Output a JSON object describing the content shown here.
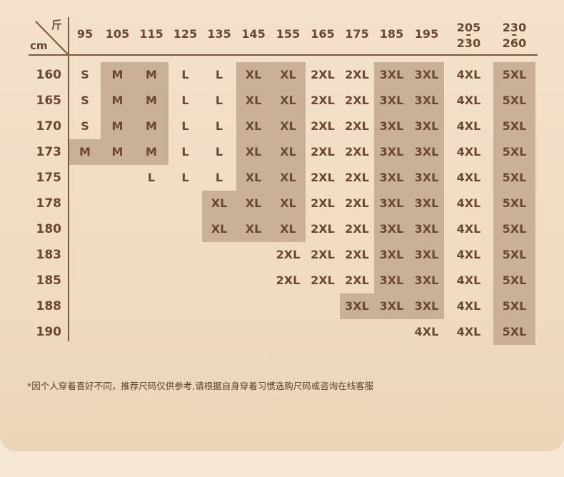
{
  "corner": {
    "weight_unit": "斤",
    "height_unit": "cm"
  },
  "weights": [
    "95",
    "105",
    "115",
    "125",
    "135",
    "145",
    "155",
    "165",
    "175",
    "185",
    "195",
    {
      "from": "205",
      "to": "230"
    },
    {
      "from": "230",
      "to": "260"
    }
  ],
  "shaded_sizes": [
    "M",
    "XL",
    "3XL",
    "5XL"
  ],
  "colors": {
    "text": "#6a4732",
    "shade": "#c9b097",
    "line": "#7a5842",
    "background": "#f2ddc4"
  },
  "rows": [
    {
      "height": "160",
      "sizes": [
        "S",
        "M",
        "M",
        "L",
        "L",
        "XL",
        "XL",
        "2XL",
        "2XL",
        "3XL",
        "3XL",
        "4XL",
        "5XL"
      ]
    },
    {
      "height": "165",
      "sizes": [
        "S",
        "M",
        "M",
        "L",
        "L",
        "XL",
        "XL",
        "2XL",
        "2XL",
        "3XL",
        "3XL",
        "4XL",
        "5XL"
      ]
    },
    {
      "height": "170",
      "sizes": [
        "S",
        "M",
        "M",
        "L",
        "L",
        "XL",
        "XL",
        "2XL",
        "2XL",
        "3XL",
        "3XL",
        "4XL",
        "5XL"
      ]
    },
    {
      "height": "173",
      "sizes": [
        "M",
        "M",
        "M",
        "L",
        "L",
        "XL",
        "XL",
        "2XL",
        "2XL",
        "3XL",
        "3XL",
        "4XL",
        "5XL"
      ]
    },
    {
      "height": "175",
      "sizes": [
        "",
        "",
        "L",
        "L",
        "L",
        "XL",
        "XL",
        "2XL",
        "2XL",
        "3XL",
        "3XL",
        "4XL",
        "5XL"
      ]
    },
    {
      "height": "178",
      "sizes": [
        "",
        "",
        "",
        "",
        "XL",
        "XL",
        "XL",
        "2XL",
        "2XL",
        "3XL",
        "3XL",
        "4XL",
        "5XL"
      ]
    },
    {
      "height": "180",
      "sizes": [
        "",
        "",
        "",
        "",
        "XL",
        "XL",
        "XL",
        "2XL",
        "2XL",
        "3XL",
        "3XL",
        "4XL",
        "5XL"
      ]
    },
    {
      "height": "183",
      "sizes": [
        "",
        "",
        "",
        "",
        "",
        "",
        "2XL",
        "2XL",
        "2XL",
        "3XL",
        "3XL",
        "4XL",
        "5XL"
      ]
    },
    {
      "height": "185",
      "sizes": [
        "",
        "",
        "",
        "",
        "",
        "",
        "2XL",
        "2XL",
        "2XL",
        "3XL",
        "3XL",
        "4XL",
        "5XL"
      ]
    },
    {
      "height": "188",
      "sizes": [
        "",
        "",
        "",
        "",
        "",
        "",
        "",
        "",
        "3XL",
        "3XL",
        "3XL",
        "4XL",
        "5XL"
      ]
    },
    {
      "height": "190",
      "sizes": [
        "",
        "",
        "",
        "",
        "",
        "",
        "",
        "",
        "",
        "",
        "4XL",
        "4XL",
        "5XL"
      ]
    }
  ],
  "note": "*因个人穿着喜好不同，推荐尺码仅供参考,请根据自身穿着习惯选购尺码或咨询在线客服"
}
